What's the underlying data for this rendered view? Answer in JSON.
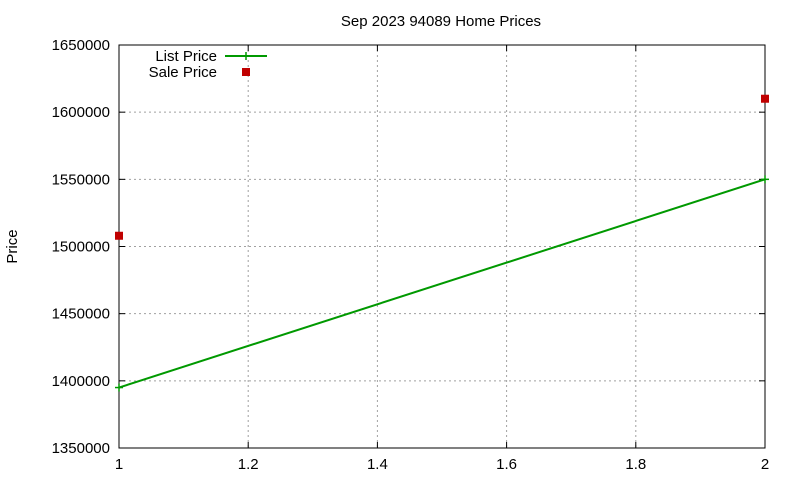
{
  "chart_data": {
    "type": "line",
    "title": "Sep 2023 94089 Home Prices",
    "xlabel": "",
    "ylabel": "Price",
    "xlim": [
      1,
      2
    ],
    "ylim": [
      1350000,
      1650000
    ],
    "xticks": [
      1,
      1.2,
      1.4,
      1.6,
      1.8,
      2
    ],
    "yticks": [
      1350000,
      1400000,
      1450000,
      1500000,
      1550000,
      1600000,
      1650000
    ],
    "grid": true,
    "legend_position": "top-left",
    "series": [
      {
        "name": "List Price",
        "style": "linespoints",
        "color": "#009900",
        "x": [
          1,
          2
        ],
        "y": [
          1395000,
          1550000
        ]
      },
      {
        "name": "Sale Price",
        "style": "points",
        "color": "#c00000",
        "x": [
          1,
          2
        ],
        "y": [
          1508000,
          1610000
        ]
      }
    ]
  }
}
